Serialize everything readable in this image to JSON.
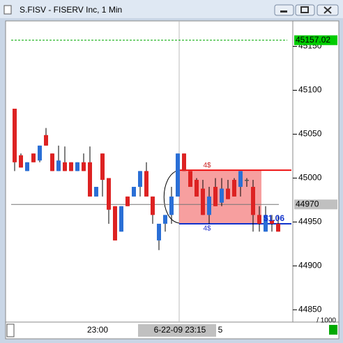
{
  "chart_data": {
    "type": "candlestick",
    "title": "S.FISV - FISERV Inc, 1 Min",
    "open": [
      45079,
      45026,
      45008,
      45028,
      45020,
      45049,
      45028,
      45008,
      45018,
      45018,
      45008,
      45018,
      45018,
      44979,
      45028,
      45000,
      44968,
      44939,
      44979,
      44979,
      44990,
      45008,
      44979,
      44929,
      44948,
      44958,
      44979,
      45028,
      45008,
      44998,
      44988,
      44958,
      44990,
      44972,
      44988,
      44998,
      44990,
      44998,
      44990,
      44958,
      44939,
      44952,
      44948
    ],
    "high": [
      45079,
      45028,
      45018,
      45028,
      45037,
      45057,
      45028,
      45037,
      45036,
      45018,
      45018,
      45028,
      45036,
      44990,
      45028,
      45000,
      44968,
      44968,
      44979,
      44990,
      45008,
      45018,
      44979,
      44948,
      44958,
      44990,
      45028,
      45028,
      45008,
      45000,
      44998,
      44990,
      45000,
      45000,
      44998,
      45000,
      45008,
      45000,
      44998,
      44968,
      44968,
      44958,
      44958
    ],
    "low": [
      45008,
      45012,
      45008,
      45018,
      45018,
      45037,
      45008,
      45008,
      45008,
      45008,
      45008,
      45008,
      44979,
      44979,
      44979,
      44948,
      44929,
      44939,
      44968,
      44979,
      44979,
      44979,
      44948,
      44918,
      44939,
      44948,
      44979,
      45008,
      44990,
      44979,
      44958,
      44948,
      44968,
      44968,
      44976,
      44979,
      44979,
      44990,
      44939,
      44939,
      44939,
      44939,
      44939
    ],
    "close": [
      45018,
      45012,
      45018,
      45018,
      45037,
      45037,
      45008,
      45020,
      45008,
      45008,
      45018,
      45008,
      44979,
      44990,
      44998,
      44964,
      44929,
      44968,
      44968,
      44990,
      45008,
      44979,
      44958,
      44948,
      44958,
      44979,
      45028,
      45008,
      44990,
      44979,
      44958,
      44979,
      44968,
      44988,
      44976,
      44979,
      45008,
      44998,
      44958,
      44948,
      44958,
      44948,
      44939
    ],
    "up_color": "#2a6fd6",
    "down_color": "#dd2222",
    "doji_color": "#555555",
    "ylim": [
      44836,
      45179
    ],
    "yticks": [
      44850,
      44900,
      44950,
      45000,
      45050,
      45100,
      45150
    ],
    "xtick_labels": [
      "23:00",
      "6-22-09 23:15",
      "5"
    ],
    "lines": [
      {
        "value": 45157.02,
        "label": "45157.02",
        "color": "#00aa00",
        "style": "dashed"
      },
      {
        "value": 44970,
        "label": "44970",
        "color": "#777777",
        "style": "solid"
      }
    ],
    "range_box": {
      "top": 45009,
      "bottom": 44948,
      "top_label": "4$",
      "bottom_label": "4$",
      "annotation": "$1.06"
    },
    "footer": "/ 1000"
  }
}
